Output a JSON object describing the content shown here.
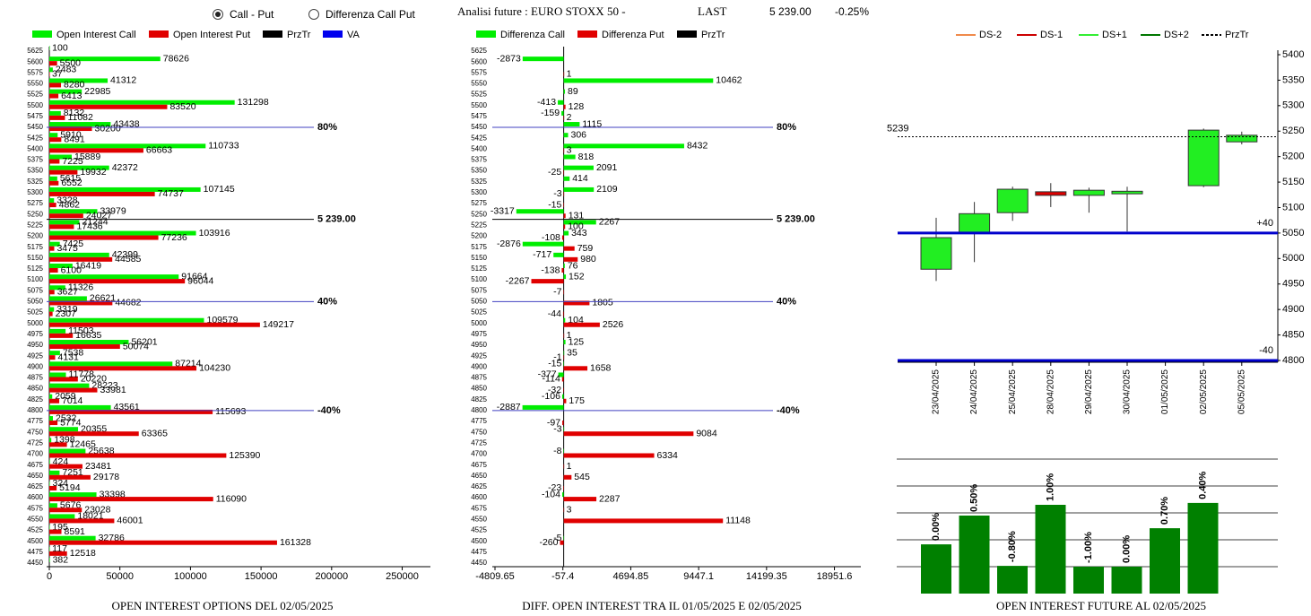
{
  "header": {
    "radio": [
      "Call - Put",
      "Differenza Call Put"
    ],
    "title": "Analisi future : EURO STOXX 50 -",
    "last_label": "LAST",
    "last_value": "5 239.00",
    "change": "-0.25%"
  },
  "chart_data": [
    {
      "type": "hbar",
      "title": "OPEN INTEREST OPTIONS DEL 02/05/2025",
      "categories": [
        5625,
        5600,
        5575,
        5550,
        5525,
        5500,
        5475,
        5450,
        5425,
        5400,
        5375,
        5350,
        5325,
        5300,
        5275,
        5250,
        5225,
        5200,
        5175,
        5150,
        5125,
        5100,
        5075,
        5050,
        5025,
        5000,
        4975,
        4950,
        4925,
        4900,
        4875,
        4850,
        4825,
        4800,
        4775,
        4750,
        4725,
        4700,
        4675,
        4650,
        4625,
        4600,
        4575,
        4550,
        4525,
        4500,
        4475,
        4450
      ],
      "series": [
        {
          "name": "Open Interest Call",
          "color": "#00ee00",
          "values": [
            100,
            78626,
            2483,
            41312,
            22985,
            131298,
            8132,
            43438,
            5910,
            110733,
            15889,
            42372,
            5615,
            107145,
            3328,
            33979,
            21244,
            103916,
            7425,
            42399,
            16419,
            91664,
            11326,
            26621,
            3319,
            109579,
            11503,
            56201,
            7538,
            87214,
            11778,
            28223,
            2059,
            43561,
            2532,
            20355,
            1398,
            25638,
            424,
            7251,
            324,
            33398,
            5676,
            18021,
            195,
            32786,
            117,
            382
          ]
        },
        {
          "name": "Open Interest Put",
          "color": "#e00000",
          "values": [
            null,
            5500,
            37,
            8280,
            6413,
            83520,
            11082,
            30200,
            8491,
            66663,
            7225,
            19932,
            6552,
            74737,
            4862,
            24027,
            17436,
            77236,
            3475,
            44585,
            6100,
            96044,
            3627,
            44682,
            2307,
            149217,
            16635,
            50074,
            4131,
            104230,
            20220,
            33981,
            7014,
            115693,
            5774,
            63365,
            12465,
            125390,
            23481,
            29178,
            5194,
            116090,
            23028,
            46001,
            8591,
            161328,
            12518,
            null
          ]
        }
      ],
      "legend_extra": [
        {
          "name": "PrzTr",
          "color": "#000000"
        },
        {
          "name": "VA",
          "color": "#0000ee"
        }
      ],
      "levels": [
        {
          "value": 5450,
          "label": "80%",
          "color": "#4040c0"
        },
        {
          "value": 5239,
          "label": "5 239.00",
          "color": "#000000"
        },
        {
          "value": 5050,
          "label": "40%",
          "color": "#4040c0"
        },
        {
          "value": 4800,
          "label": "-40%",
          "color": "#4040c0"
        }
      ],
      "xlim": [
        0,
        270000
      ],
      "xticks": [
        0,
        50000,
        100000,
        150000,
        200000,
        250000
      ]
    },
    {
      "type": "hbar",
      "title": "DIFF. OPEN INTEREST TRA IL 01/05/2025 E 02/05/2025",
      "categories": [
        5625,
        5600,
        5575,
        5550,
        5525,
        5500,
        5475,
        5450,
        5425,
        5400,
        5375,
        5350,
        5325,
        5300,
        5275,
        5250,
        5225,
        5200,
        5175,
        5150,
        5125,
        5100,
        5075,
        5050,
        5025,
        5000,
        4975,
        4950,
        4925,
        4900,
        4875,
        4850,
        4825,
        4800,
        4775,
        4750,
        4725,
        4700,
        4675,
        4650,
        4625,
        4600,
        4575,
        4550,
        4525,
        4500,
        4475,
        4450
      ],
      "series": [
        {
          "name": "Differenza Call",
          "color": "#00ee00",
          "values": [
            null,
            -2873,
            null,
            10462,
            89,
            -413,
            -159,
            1115,
            306,
            8432,
            818,
            2091,
            414,
            2109,
            null,
            -3317,
            2267,
            343,
            -2876,
            -717,
            76,
            152,
            null,
            null,
            null,
            104,
            null,
            125,
            35,
            -15,
            -377,
            null,
            -106,
            -2887,
            null,
            -3,
            null,
            -8,
            null,
            null,
            null,
            -104,
            null,
            null,
            null,
            -5,
            null,
            null
          ]
        },
        {
          "name": "Differenza Put",
          "color": "#e00000",
          "values": [
            null,
            null,
            1,
            null,
            null,
            128,
            2,
            null,
            null,
            3,
            null,
            -25,
            null,
            -3,
            -15,
            131,
            100,
            -108,
            759,
            980,
            -138,
            -2267,
            -7,
            1805,
            -44,
            2526,
            1,
            null,
            -1,
            1658,
            -114,
            -32,
            175,
            null,
            -97,
            9084,
            null,
            6334,
            1,
            545,
            -23,
            2287,
            3,
            11148,
            null,
            -260,
            null,
            null
          ]
        }
      ],
      "legend_extra": [
        {
          "name": "PrzTr",
          "color": "#000000"
        }
      ],
      "levels": [
        {
          "value": 5450,
          "label": "80%",
          "color": "#4040c0"
        },
        {
          "value": 5239,
          "label": "5 239.00",
          "color": "#000000"
        },
        {
          "value": 5050,
          "label": "40%",
          "color": "#4040c0"
        },
        {
          "value": 4800,
          "label": "-40%",
          "color": "#4040c0"
        }
      ],
      "xlim": [
        -4809.65,
        20800
      ],
      "xticks": [
        -4809.65,
        -57.4,
        4694.85,
        9447.1,
        14199.35,
        18951.6
      ]
    },
    {
      "type": "candlestick",
      "x": [
        "23/04/2025",
        "24/04/2025",
        "25/04/2025",
        "28/04/2025",
        "29/04/2025",
        "30/04/2025",
        "01/05/2025",
        "02/05/2025",
        "05/05/2025"
      ],
      "open": [
        4979,
        5051,
        5090,
        5131,
        5124,
        5127,
        null,
        5143,
        5229
      ],
      "high": [
        5080,
        5111,
        5141,
        5148,
        5139,
        5141,
        null,
        5255,
        5249
      ],
      "low": [
        4956,
        4993,
        5074,
        5101,
        5090,
        5053,
        null,
        5140,
        5224
      ],
      "close": [
        5041,
        5088,
        5136,
        5124,
        5134,
        5132,
        null,
        5252,
        5242
      ],
      "up_color": "#22ee22",
      "down_color": "#dd0000",
      "legend": [
        {
          "name": "DS-2",
          "color": "#f08a4b"
        },
        {
          "name": "DS-1",
          "color": "#cc0000"
        },
        {
          "name": "DS+1",
          "color": "#33ee33"
        },
        {
          "name": "DS+2",
          "color": "#007700"
        },
        {
          "name": "PrzTr",
          "color": "#000000",
          "dash": true
        }
      ],
      "levels": [
        {
          "value": 5239,
          "label": "5239",
          "color": "#000000",
          "dash": true
        },
        {
          "value": 5050,
          "label": "+40",
          "color": "#0000cc"
        },
        {
          "value": 4800,
          "label": "-40",
          "color": "#0000cc"
        }
      ],
      "ylim": [
        4800,
        5400
      ],
      "yticks": [
        4800,
        4850,
        4900,
        4950,
        5000,
        5050,
        5100,
        5150,
        5200,
        5250,
        5300,
        5350,
        5400
      ]
    },
    {
      "type": "bar",
      "title": "OPEN INTEREST FUTURE AL 02/05/2025",
      "values": [
        1.83,
        2.9,
        1.03,
        3.3,
        1.0,
        1.0,
        2.43,
        3.37
      ],
      "bar_labels": [
        "0.00%",
        "0.50%",
        "-0.80%",
        "1.00%",
        "-1.00%",
        "0.00%",
        "0.70%",
        "0.40%"
      ],
      "color": "#008000",
      "ylim": [
        0,
        5
      ],
      "gridlines": [
        1,
        2,
        3,
        4,
        5
      ]
    }
  ]
}
